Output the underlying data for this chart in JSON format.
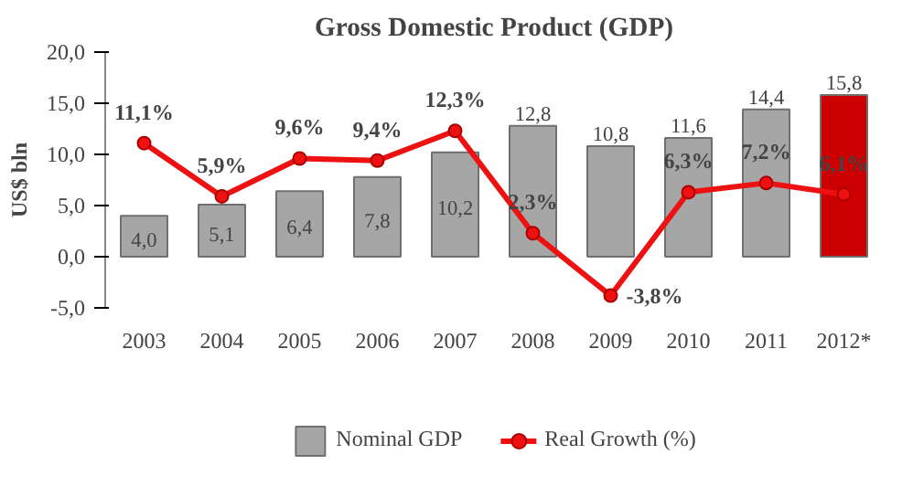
{
  "chart_data": {
    "type": "bar",
    "title": "Gross Domestic Product (GDP)",
    "ylabel": "US$ bln",
    "categories": [
      "2003",
      "2004",
      "2005",
      "2006",
      "2007",
      "2008",
      "2009",
      "2010",
      "2011",
      "2012*"
    ],
    "ylim": [
      -5,
      20
    ],
    "yticks": [
      {
        "value": -5,
        "label": "-5,0"
      },
      {
        "value": 0,
        "label": "0,0"
      },
      {
        "value": 5,
        "label": "5,0"
      },
      {
        "value": 10,
        "label": "10,0"
      },
      {
        "value": 15,
        "label": "15,0"
      },
      {
        "value": 20,
        "label": "20,0"
      }
    ],
    "grid": false,
    "legend": "bottom",
    "series": [
      {
        "name": "Nominal GDP",
        "color": "#a6a6a6",
        "colors": [
          "#a6a6a6",
          "#a6a6a6",
          "#a6a6a6",
          "#a6a6a6",
          "#a6a6a6",
          "#a6a6a6",
          "#a6a6a6",
          "#a6a6a6",
          "#a6a6a6",
          "#cc0000"
        ],
        "values": [
          4.0,
          5.1,
          6.4,
          7.8,
          10.2,
          12.8,
          10.8,
          11.6,
          14.4,
          15.8
        ],
        "value_labels": [
          "4,0",
          "5,1",
          "6,4",
          "7,8",
          "10,2",
          "12,8",
          "10,8",
          "11,6",
          "14,4",
          "15,8"
        ]
      },
      {
        "name": "Real Growth (%)",
        "type": "line",
        "color": "#ee1111",
        "marker": "circle",
        "line_style": "solid",
        "values": [
          11.1,
          5.9,
          9.6,
          9.4,
          12.3,
          2.3,
          -3.8,
          6.3,
          7.2,
          6.1
        ],
        "value_labels": [
          "11,1%",
          "5,9%",
          "9,6%",
          "9,4%",
          "12,3%",
          "2,3%",
          "-3,8%",
          "6,3%",
          "7,2%",
          "6,1%"
        ]
      }
    ]
  }
}
